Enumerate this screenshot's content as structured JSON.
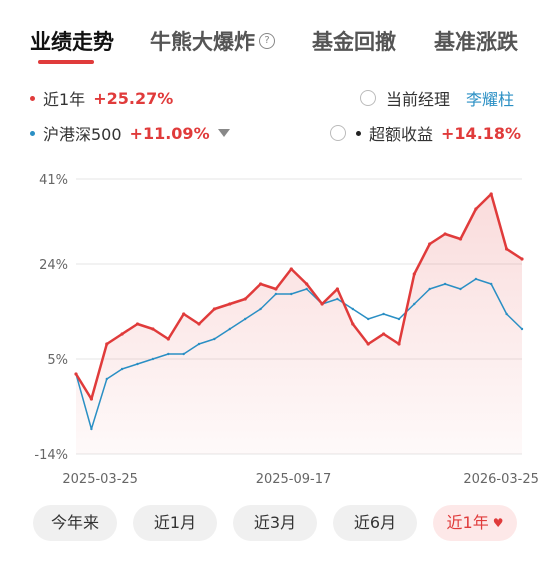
{
  "tabs": [
    {
      "label": "业绩走势",
      "active": true
    },
    {
      "label": "牛熊大爆炸",
      "help_icon": "?"
    },
    {
      "label": "基金回撤"
    },
    {
      "label": "基准涨跌"
    }
  ],
  "legend": {
    "fund": {
      "label": "近1年",
      "value": "+25.27%",
      "color": "#e03b3b"
    },
    "benchmark": {
      "label": "沪港深500",
      "value": "+11.09%",
      "color": "#2a8fc4"
    },
    "manager": {
      "label": "当前经理",
      "name": "李耀柱"
    },
    "excess": {
      "label": "超额收益",
      "value": "+14.18%"
    }
  },
  "colors": {
    "fund": "#e03b3b",
    "benchmark": "#2a8fc4",
    "accent": "#e03b3b",
    "manager_link": "#2a8fc4"
  },
  "chart_data": {
    "type": "line",
    "title": "",
    "xlabel": "",
    "ylabel": "",
    "ylim": [
      -14,
      41
    ],
    "y_ticks": [
      "41%",
      "24%",
      "5%",
      "-14%"
    ],
    "x_ticks": [
      "2025-03-25",
      "2025-09-17",
      "2026-03-25"
    ],
    "x": [
      "2025-03-03",
      "2025-03-17",
      "2025-03-31",
      "2025-04-14",
      "2025-04-28",
      "2025-05-12",
      "2025-05-26",
      "2025-06-09",
      "2025-06-23",
      "2025-07-07",
      "2025-07-21",
      "2025-08-04",
      "2025-08-18",
      "2025-09-01",
      "2025-09-15",
      "2025-09-29",
      "2025-10-13",
      "2025-10-27",
      "2025-11-10",
      "2025-11-24",
      "2025-12-08",
      "2025-12-22",
      "2026-01-05",
      "2026-01-19",
      "2026-02-02",
      "2026-02-16",
      "2026-03-02",
      "2026-03-16",
      "2026-03-30",
      "2026-04-13"
    ],
    "series": [
      {
        "name": "近1年",
        "color": "#e03b3b",
        "values": [
          2,
          -3,
          8,
          10,
          12,
          11,
          9,
          14,
          12,
          15,
          16,
          17,
          20,
          19,
          23,
          20,
          16,
          19,
          12,
          8,
          10,
          8,
          22,
          28,
          30,
          29,
          35,
          38,
          27,
          25
        ]
      },
      {
        "name": "沪港深500",
        "color": "#2a8fc4",
        "values": [
          2,
          -9,
          1,
          3,
          4,
          5,
          6,
          6,
          8,
          9,
          11,
          13,
          15,
          18,
          18,
          19,
          16,
          17,
          15,
          13,
          14,
          13,
          16,
          19,
          20,
          19,
          21,
          20,
          14,
          11
        ]
      }
    ]
  },
  "periods": [
    {
      "label": "今年来"
    },
    {
      "label": "近1月"
    },
    {
      "label": "近3月"
    },
    {
      "label": "近6月"
    },
    {
      "label": "近1年",
      "active": true
    }
  ]
}
